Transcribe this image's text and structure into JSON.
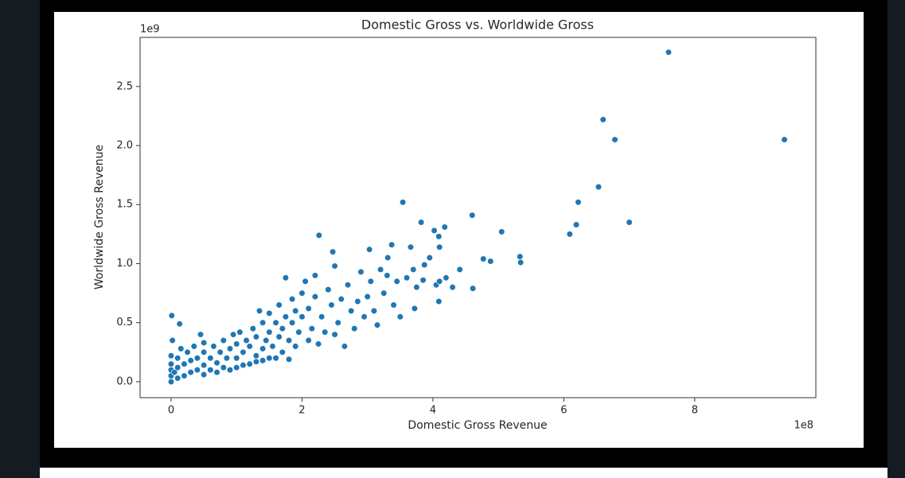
{
  "chart_data": {
    "type": "scatter",
    "title": "Domestic Gross vs. Worldwide Gross",
    "xlabel": "Domestic Gross Revenue",
    "ylabel": "Worldwide Gross Revenue",
    "x_offset": "1e8",
    "y_offset": "1e9",
    "color": "#1f77b4",
    "xlim": [
      -0.474,
      9.85
    ],
    "ylim": [
      -0.135,
      2.916
    ],
    "xticks": [
      0,
      2,
      4,
      6,
      8
    ],
    "yticks": [
      {
        "value": 0,
        "label": "0.0"
      },
      0.5,
      {
        "value": 1,
        "label": "1.0"
      },
      1.5,
      {
        "value": 2,
        "label": "2.0"
      },
      2.5
    ],
    "x": [
      7.6,
      6.6,
      6.78,
      9.37,
      6.53,
      7.0,
      6.22,
      6.19,
      6.09,
      5.05,
      5.33,
      5.34,
      4.6,
      4.61,
      4.77,
      4.88,
      3.54,
      3.82,
      4.02,
      4.18,
      4.09,
      4.1,
      4.41,
      4.09,
      3.5,
      3.72,
      2.26,
      2.47,
      0.01,
      0.13,
      3.03,
      3.37,
      3.66,
      3.31,
      3.7,
      3.87,
      0,
      0,
      0,
      0,
      0,
      0.02,
      0.05,
      0.1,
      0.1,
      0.1,
      0.15,
      0.2,
      0.2,
      0.25,
      0.3,
      0.3,
      0.35,
      0.4,
      0.4,
      0.45,
      0.5,
      0.5,
      0.5,
      0.5,
      0.6,
      0.6,
      0.65,
      0.7,
      0.7,
      0.75,
      0.8,
      0.8,
      0.85,
      0.9,
      0.9,
      0.95,
      1.0,
      1.0,
      1.0,
      1.05,
      1.1,
      1.1,
      1.15,
      1.2,
      1.2,
      1.25,
      1.3,
      1.3,
      1.3,
      1.35,
      1.4,
      1.4,
      1.4,
      1.45,
      1.5,
      1.5,
      1.5,
      1.55,
      1.6,
      1.6,
      1.65,
      1.65,
      1.7,
      1.7,
      1.75,
      1.75,
      1.8,
      1.8,
      1.85,
      1.85,
      1.9,
      1.9,
      1.95,
      2.0,
      2.0,
      2.05,
      2.1,
      2.1,
      2.15,
      2.2,
      2.2,
      2.25,
      2.3,
      2.35,
      2.4,
      2.45,
      2.5,
      2.5,
      2.55,
      2.6,
      2.65,
      2.7,
      2.75,
      2.8,
      2.85,
      2.9,
      2.95,
      3.0,
      3.05,
      3.1,
      3.15,
      3.2,
      3.25,
      3.3,
      3.4,
      3.45,
      3.6,
      3.75,
      3.85,
      3.95,
      4.05,
      4.2,
      4.3,
      4.1
    ],
    "values": [
      2.79,
      2.22,
      2.05,
      2.05,
      1.65,
      1.35,
      1.52,
      1.33,
      1.25,
      1.27,
      1.06,
      1.01,
      1.41,
      0.79,
      1.04,
      1.02,
      1.52,
      1.35,
      1.28,
      1.31,
      1.23,
      1.14,
      0.95,
      0.68,
      0.55,
      0.62,
      1.24,
      1.1,
      0.56,
      0.49,
      1.12,
      1.16,
      1.14,
      1.05,
      0.95,
      0.99,
      0,
      0.05,
      0.1,
      0.15,
      0.22,
      0.35,
      0.08,
      0.03,
      0.12,
      0.2,
      0.28,
      0.05,
      0.15,
      0.25,
      0.08,
      0.18,
      0.3,
      0.1,
      0.2,
      0.4,
      0.06,
      0.14,
      0.25,
      0.33,
      0.1,
      0.2,
      0.3,
      0.08,
      0.16,
      0.25,
      0.12,
      0.35,
      0.2,
      0.1,
      0.28,
      0.4,
      0.12,
      0.2,
      0.32,
      0.42,
      0.14,
      0.25,
      0.35,
      0.15,
      0.3,
      0.45,
      0.17,
      0.22,
      0.38,
      0.6,
      0.18,
      0.28,
      0.5,
      0.35,
      0.2,
      0.42,
      0.58,
      0.3,
      0.2,
      0.5,
      0.38,
      0.65,
      0.25,
      0.45,
      0.55,
      0.88,
      0.19,
      0.35,
      0.5,
      0.7,
      0.3,
      0.6,
      0.42,
      0.55,
      0.75,
      0.85,
      0.35,
      0.62,
      0.45,
      0.9,
      0.72,
      0.32,
      0.55,
      0.42,
      0.78,
      0.65,
      0.98,
      0.4,
      0.5,
      0.7,
      0.3,
      0.82,
      0.6,
      0.45,
      0.68,
      0.93,
      0.55,
      0.72,
      0.85,
      0.6,
      0.48,
      0.95,
      0.75,
      0.9,
      0.65,
      0.85,
      0.88,
      0.8,
      0.86,
      1.05,
      0.82,
      0.88,
      0.8,
      0.85
    ]
  }
}
